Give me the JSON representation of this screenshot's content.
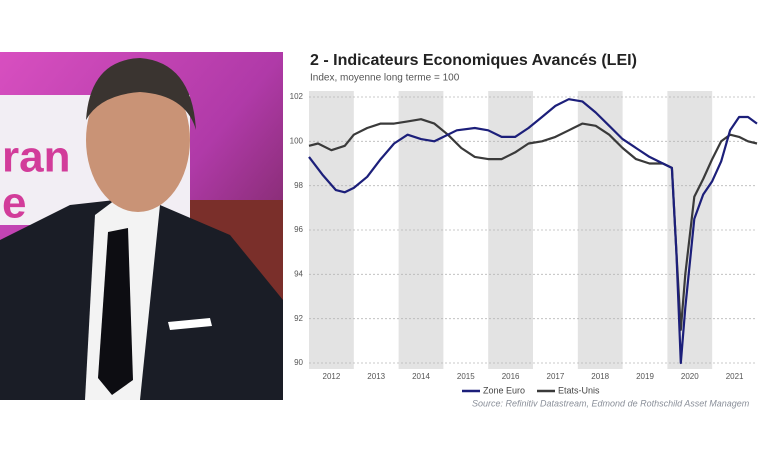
{
  "photo": {
    "screen_text": [
      "ran",
      "e"
    ]
  },
  "chart_data": {
    "type": "line",
    "title": "2 - Indicateurs Economiques Avancés (LEI)",
    "subtitle": "Index, moyenne long terme = 100",
    "source": "Source: Refinitiv Datastream, Edmond de Rothschild Asset Managem",
    "xlim": [
      2012,
      2022
    ],
    "xticks": [
      {
        "value": 2012.5,
        "label": "2012"
      },
      {
        "value": 2013.5,
        "label": "2013"
      },
      {
        "value": 2014.5,
        "label": "2014"
      },
      {
        "value": 2015.5,
        "label": "2015"
      },
      {
        "value": 2016.5,
        "label": "2016"
      },
      {
        "value": 2017.5,
        "label": "2017"
      },
      {
        "value": 2018.5,
        "label": "2018"
      },
      {
        "value": 2019.5,
        "label": "2019"
      },
      {
        "value": 2020.5,
        "label": "2020"
      },
      {
        "value": 2021.5,
        "label": "2021"
      }
    ],
    "ylim": [
      90,
      102
    ],
    "yticks": [
      90,
      92,
      94,
      96,
      98,
      100,
      102
    ],
    "grid": true,
    "shaded_bands": [
      [
        2012,
        2013
      ],
      [
        2014,
        2015
      ],
      [
        2016,
        2017
      ],
      [
        2018,
        2019
      ],
      [
        2020,
        2021
      ]
    ],
    "series": [
      {
        "name": "Zone Euro",
        "color": "#1c1f7a",
        "x": [
          2012.0,
          2012.3,
          2012.6,
          2012.8,
          2013.0,
          2013.3,
          2013.6,
          2013.9,
          2014.2,
          2014.5,
          2014.8,
          2015.0,
          2015.3,
          2015.7,
          2016.0,
          2016.3,
          2016.6,
          2016.9,
          2017.2,
          2017.5,
          2017.8,
          2018.1,
          2018.4,
          2018.7,
          2019.0,
          2019.3,
          2019.6,
          2019.9,
          2020.1,
          2020.2,
          2020.3,
          2020.4,
          2020.6,
          2020.8,
          2021.0,
          2021.2,
          2021.4,
          2021.6,
          2021.8,
          2022.0
        ],
        "values": [
          99.3,
          98.5,
          97.8,
          97.7,
          97.9,
          98.4,
          99.2,
          99.9,
          100.3,
          100.1,
          100.0,
          100.2,
          100.5,
          100.6,
          100.5,
          100.2,
          100.2,
          100.6,
          101.1,
          101.6,
          101.9,
          101.8,
          101.3,
          100.7,
          100.1,
          99.7,
          99.3,
          99.0,
          98.8,
          95.0,
          90.0,
          92.5,
          96.5,
          97.6,
          98.2,
          99.1,
          100.5,
          101.1,
          101.1,
          100.8
        ]
      },
      {
        "name": "Etats-Unis",
        "color": "#3a3a3a",
        "x": [
          2012.0,
          2012.2,
          2012.5,
          2012.8,
          2013.0,
          2013.3,
          2013.6,
          2013.9,
          2014.2,
          2014.5,
          2014.8,
          2015.1,
          2015.4,
          2015.7,
          2016.0,
          2016.3,
          2016.6,
          2016.9,
          2017.2,
          2017.5,
          2017.8,
          2018.1,
          2018.4,
          2018.7,
          2019.0,
          2019.3,
          2019.6,
          2019.9,
          2020.1,
          2020.2,
          2020.3,
          2020.4,
          2020.6,
          2020.8,
          2021.0,
          2021.2,
          2021.4,
          2021.6,
          2021.8,
          2022.0
        ],
        "values": [
          99.8,
          99.9,
          99.6,
          99.8,
          100.3,
          100.6,
          100.8,
          100.8,
          100.9,
          101.0,
          100.8,
          100.3,
          99.7,
          99.3,
          99.2,
          99.2,
          99.5,
          99.9,
          100.0,
          100.2,
          100.5,
          100.8,
          100.7,
          100.3,
          99.7,
          99.2,
          99.0,
          99.0,
          98.8,
          95.0,
          91.5,
          94.0,
          97.5,
          98.3,
          99.2,
          100.0,
          100.3,
          100.2,
          100.0,
          99.9
        ]
      }
    ]
  }
}
